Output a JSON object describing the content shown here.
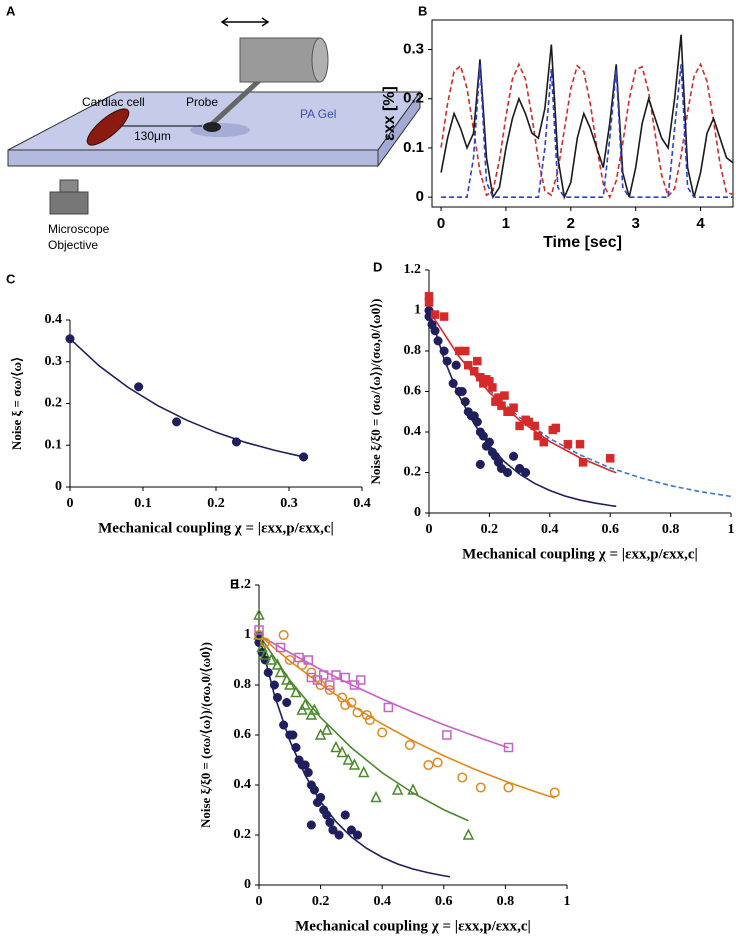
{
  "diagram": {
    "label": "A",
    "labels": [
      "Cardiac cell",
      "Probe",
      "130μm",
      "PA Gel",
      "Microscope",
      "Objective"
    ]
  },
  "chart_data": [
    {
      "type": "line",
      "label": "B",
      "xlabel": "Time [sec]",
      "ylabel": "εxx [%]",
      "frame": "box",
      "xlim": [
        -0.14,
        4.5
      ],
      "ylim": [
        -0.02,
        0.36
      ],
      "xticks": [
        0,
        1,
        2,
        3,
        4
      ],
      "yticks": [
        0,
        0.1,
        0.2,
        0.3
      ],
      "x": [
        0,
        0.1,
        0.2,
        0.3,
        0.4,
        0.5,
        0.6,
        0.7,
        0.8,
        0.9,
        1,
        1.1,
        1.2,
        1.3,
        1.4,
        1.5,
        1.6,
        1.7,
        1.8,
        1.9,
        2,
        2.1,
        2.2,
        2.3,
        2.4,
        2.5,
        2.6,
        2.7,
        2.8,
        2.9,
        3,
        3.1,
        3.2,
        3.3,
        3.4,
        3.5,
        3.6,
        3.7,
        3.8,
        3.9,
        4,
        4.1,
        4.2,
        4.3,
        4.4,
        4.5
      ],
      "series": [
        {
          "color": "#d62a2a",
          "dash": true,
          "values": [
            0.101,
            0.19,
            0.255,
            0.267,
            0.221,
            0.137,
            0.052,
            0.004,
            0.013,
            0.076,
            0.164,
            0.24,
            0.27,
            0.24,
            0.164,
            0.075,
            0.013,
            0.004,
            0.053,
            0.137,
            0.221,
            0.267,
            0.255,
            0.19,
            0.101,
            0.027,
            0,
            0.033,
            0.109,
            0.199,
            0.259,
            0.265,
            0.214,
            0.128,
            0.045,
            0.002,
            0.017,
            0.084,
            0.173,
            0.246,
            0.27,
            0.235,
            0.155,
            0.068,
            0.009,
            0.006
          ]
        },
        {
          "color": "#1a1a1a",
          "dash": false,
          "values": [
            0.05,
            0.12,
            0.17,
            0.14,
            0.1,
            0.13,
            0.28,
            0.08,
            0,
            0.02,
            0.1,
            0.16,
            0.2,
            0.17,
            0.13,
            0.12,
            0.18,
            0.31,
            0.08,
            0,
            0.03,
            0.12,
            0.17,
            0.14,
            0.1,
            0.06,
            0.15,
            0.27,
            0.05,
            0,
            0.06,
            0.15,
            0.2,
            0.16,
            0.12,
            0.1,
            0.2,
            0.33,
            0.06,
            0,
            0.05,
            0.13,
            0.16,
            0.12,
            0.08,
            0.07
          ]
        },
        {
          "color": "#2a3fd0",
          "dash": true,
          "values": [
            0,
            0,
            0,
            0,
            0,
            0.08,
            0.27,
            0.03,
            0,
            0,
            0,
            0,
            0,
            0,
            0,
            0,
            0.1,
            0.26,
            0.02,
            0,
            0,
            0,
            0,
            0,
            0,
            0,
            0.12,
            0.26,
            0.02,
            0,
            0,
            0,
            0,
            0,
            0,
            0,
            0.14,
            0.27,
            0.02,
            0,
            0,
            0,
            0,
            0,
            0,
            0
          ]
        }
      ]
    },
    {
      "type": "scatter",
      "label": "C",
      "xlabel": "Mechanical coupling χ = |εxx,p/εxx,c|",
      "ylabel": "Noise ξ = σω/⟨ω⟩",
      "frame": "axes",
      "xlim": [
        0,
        0.4
      ],
      "ylim": [
        0,
        0.4
      ],
      "xticks": [
        0,
        0.1,
        0.2,
        0.3,
        0.4
      ],
      "yticks": [
        0,
        0.1,
        0.2,
        0.3,
        0.4
      ],
      "series": [
        {
          "kind": "line",
          "color": "#1f1f5e",
          "x": [
            0,
            0.04,
            0.08,
            0.12,
            0.16,
            0.2,
            0.24,
            0.28,
            0.32
          ],
          "values": [
            0.355,
            0.29,
            0.238,
            0.195,
            0.16,
            0.131,
            0.107,
            0.088,
            0.072
          ]
        },
        {
          "kind": "points",
          "marker": "circle",
          "filled": true,
          "color": "#1f1f5e",
          "x": [
            0,
            0.094,
            0.146,
            0.228,
            0.32
          ],
          "values": [
            0.355,
            0.24,
            0.156,
            0.108,
            0.072
          ]
        }
      ]
    },
    {
      "type": "scatter",
      "label": "D",
      "xlabel": "Mechanical coupling χ = |εxx,p/εxx,c|",
      "ylabel": "Noise ξ/ξ0 = (σω/⟨ω⟩)/(σω,0/⟨ω0⟩)",
      "frame": "axes",
      "xlim": [
        0,
        1
      ],
      "ylim": [
        0,
        1.2
      ],
      "xticks": [
        0,
        0.2,
        0.4,
        0.6,
        0.8,
        1
      ],
      "yticks": [
        0,
        0.2,
        0.4,
        0.6,
        0.8,
        1,
        1.2
      ],
      "series": [
        {
          "kind": "line",
          "color": "#3b78c4",
          "dash": true,
          "x": [
            0.2,
            0.3,
            0.4,
            0.5,
            0.6,
            0.7,
            0.8,
            0.9,
            1
          ],
          "values": [
            0.607,
            0.472,
            0.368,
            0.287,
            0.223,
            0.174,
            0.135,
            0.105,
            0.082
          ]
        },
        {
          "kind": "line",
          "color": "#1f1f5e",
          "x": [
            0,
            0.05,
            0.1,
            0.15,
            0.2,
            0.25,
            0.3,
            0.35,
            0.4,
            0.45,
            0.5,
            0.55,
            0.6,
            0.62
          ],
          "values": [
            1,
            0.76,
            0.577,
            0.439,
            0.333,
            0.253,
            0.192,
            0.146,
            0.111,
            0.084,
            0.064,
            0.049,
            0.037,
            0.033
          ]
        },
        {
          "kind": "line",
          "color": "#d62a2a",
          "x": [
            0,
            0.1,
            0.2,
            0.3,
            0.4,
            0.5,
            0.6,
            0.62
          ],
          "values": [
            1,
            0.771,
            0.595,
            0.458,
            0.353,
            0.273,
            0.21,
            0.199
          ]
        },
        {
          "kind": "points",
          "marker": "circle",
          "filled": true,
          "color": "#1f1f5e",
          "x": [
            0,
            0,
            0.01,
            0.02,
            0.03,
            0.05,
            0.06,
            0.08,
            0.1,
            0.11,
            0.12,
            0.13,
            0.15,
            0.16,
            0.17,
            0.18,
            0.19,
            0.2,
            0.21,
            0.22,
            0.23,
            0.24,
            0.26,
            0.3,
            0.32,
            0.28,
            0.14,
            0.09,
            0.17
          ],
          "values": [
            1,
            0.97,
            0.93,
            0.9,
            0.85,
            0.8,
            0.75,
            0.64,
            0.6,
            0.6,
            0.55,
            0.5,
            0.48,
            0.45,
            0.4,
            0.38,
            0.33,
            0.35,
            0.3,
            0.28,
            0.25,
            0.22,
            0.2,
            0.22,
            0.2,
            0.28,
            0.48,
            0.73,
            0.24
          ]
        },
        {
          "kind": "points",
          "marker": "square",
          "filled": true,
          "color": "#d62a2a",
          "x": [
            0,
            0,
            0.02,
            0.05,
            0.1,
            0.12,
            0.13,
            0.15,
            0.16,
            0.17,
            0.18,
            0.19,
            0.2,
            0.21,
            0.22,
            0.23,
            0.24,
            0.25,
            0.26,
            0.27,
            0.28,
            0.3,
            0.32,
            0.33,
            0.35,
            0.36,
            0.38,
            0.41,
            0.42,
            0.46,
            0.5,
            0.51,
            0.6
          ],
          "values": [
            1.07,
            1.04,
            0.98,
            0.97,
            0.8,
            0.8,
            0.73,
            0.7,
            0.75,
            0.67,
            0.64,
            0.66,
            0.65,
            0.62,
            0.55,
            0.57,
            0.53,
            0.58,
            0.5,
            0.5,
            0.52,
            0.43,
            0.46,
            0.45,
            0.43,
            0.38,
            0.35,
            0.41,
            0.42,
            0.34,
            0.34,
            0.25,
            0.27
          ]
        }
      ]
    },
    {
      "type": "scatter",
      "label": "E",
      "xlabel": "Mechanical coupling χ = |εxx,p/εxx,c|",
      "ylabel": "Noise ξ/ξ0 = (σω/⟨ω⟩)/(σω,0/⟨ω0⟩)",
      "frame": "axes",
      "xlim": [
        0,
        1
      ],
      "ylim": [
        0,
        1.2
      ],
      "xticks": [
        0,
        0.2,
        0.4,
        0.6,
        0.8,
        1
      ],
      "yticks": [
        0,
        0.2,
        0.4,
        0.6,
        0.8,
        1,
        1.2
      ],
      "series": [
        {
          "kind": "line",
          "color": "#1f1f5e",
          "x": [
            0,
            0.05,
            0.1,
            0.15,
            0.2,
            0.25,
            0.3,
            0.35,
            0.4,
            0.45,
            0.5,
            0.55,
            0.6,
            0.62
          ],
          "values": [
            1,
            0.76,
            0.577,
            0.439,
            0.333,
            0.253,
            0.192,
            0.146,
            0.111,
            0.084,
            0.064,
            0.049,
            0.037,
            0.033
          ]
        },
        {
          "kind": "line",
          "color": "#4a8a2a",
          "x": [
            0,
            0.1,
            0.2,
            0.3,
            0.4,
            0.5,
            0.6,
            0.68
          ],
          "values": [
            1,
            0.819,
            0.67,
            0.549,
            0.449,
            0.368,
            0.301,
            0.257
          ]
        },
        {
          "kind": "line",
          "color": "#e08a1e",
          "x": [
            0,
            0.1,
            0.2,
            0.3,
            0.4,
            0.5,
            0.6,
            0.7,
            0.8,
            0.9,
            0.96
          ],
          "values": [
            1,
            0.896,
            0.803,
            0.719,
            0.644,
            0.577,
            0.517,
            0.463,
            0.415,
            0.372,
            0.348
          ]
        },
        {
          "kind": "line",
          "color": "#c860c8",
          "x": [
            0,
            0.1,
            0.2,
            0.3,
            0.4,
            0.5,
            0.6,
            0.7,
            0.8,
            0.81
          ],
          "values": [
            1,
            0.929,
            0.862,
            0.801,
            0.744,
            0.691,
            0.641,
            0.596,
            0.553,
            0.549
          ]
        },
        {
          "kind": "points",
          "marker": "circle",
          "filled": true,
          "color": "#1f1f5e",
          "x": [
            0,
            0,
            0.01,
            0.02,
            0.03,
            0.05,
            0.06,
            0.08,
            0.1,
            0.11,
            0.12,
            0.13,
            0.15,
            0.16,
            0.17,
            0.18,
            0.19,
            0.2,
            0.21,
            0.22,
            0.23,
            0.24,
            0.26,
            0.3,
            0.32,
            0.28,
            0.14,
            0.09,
            0.17
          ],
          "values": [
            1,
            0.97,
            0.93,
            0.9,
            0.85,
            0.8,
            0.75,
            0.64,
            0.6,
            0.6,
            0.55,
            0.5,
            0.48,
            0.45,
            0.4,
            0.38,
            0.33,
            0.35,
            0.3,
            0.28,
            0.25,
            0.22,
            0.2,
            0.22,
            0.2,
            0.28,
            0.48,
            0.73,
            0.24
          ]
        },
        {
          "kind": "points",
          "marker": "triangle",
          "filled": false,
          "color": "#4a8a2a",
          "x": [
            0,
            0,
            0.01,
            0.02,
            0.04,
            0.06,
            0.07,
            0.09,
            0.1,
            0.12,
            0.14,
            0.15,
            0.17,
            0.18,
            0.2,
            0.22,
            0.25,
            0.27,
            0.29,
            0.31,
            0.34,
            0.38,
            0.45,
            0.5,
            0.68
          ],
          "values": [
            1.08,
            1,
            0.95,
            0.92,
            0.9,
            0.88,
            0.85,
            0.82,
            0.8,
            0.77,
            0.7,
            0.72,
            0.68,
            0.7,
            0.6,
            0.62,
            0.55,
            0.53,
            0.5,
            0.48,
            0.45,
            0.35,
            0.38,
            0.38,
            0.2
          ]
        },
        {
          "kind": "points",
          "marker": "circle",
          "filled": false,
          "color": "#e08a1e",
          "x": [
            0,
            0.02,
            0.08,
            0.1,
            0.14,
            0.17,
            0.2,
            0.23,
            0.27,
            0.28,
            0.3,
            0.32,
            0.35,
            0.36,
            0.4,
            0.49,
            0.55,
            0.58,
            0.66,
            0.72,
            0.81,
            0.96
          ],
          "values": [
            1,
            0.97,
            1,
            0.9,
            0.88,
            0.85,
            0.8,
            0.78,
            0.75,
            0.72,
            0.73,
            0.69,
            0.68,
            0.66,
            0.61,
            0.56,
            0.48,
            0.49,
            0.43,
            0.39,
            0.39,
            0.37
          ]
        },
        {
          "kind": "points",
          "marker": "square",
          "filled": false,
          "color": "#c860c8",
          "x": [
            0,
            0.07,
            0.13,
            0.16,
            0.17,
            0.19,
            0.21,
            0.23,
            0.25,
            0.28,
            0.31,
            0.33,
            0.42,
            0.61,
            0.81
          ],
          "values": [
            1.02,
            0.95,
            0.91,
            0.9,
            0.83,
            0.82,
            0.84,
            0.8,
            0.84,
            0.83,
            0.8,
            0.82,
            0.71,
            0.6,
            0.55
          ]
        }
      ]
    }
  ]
}
